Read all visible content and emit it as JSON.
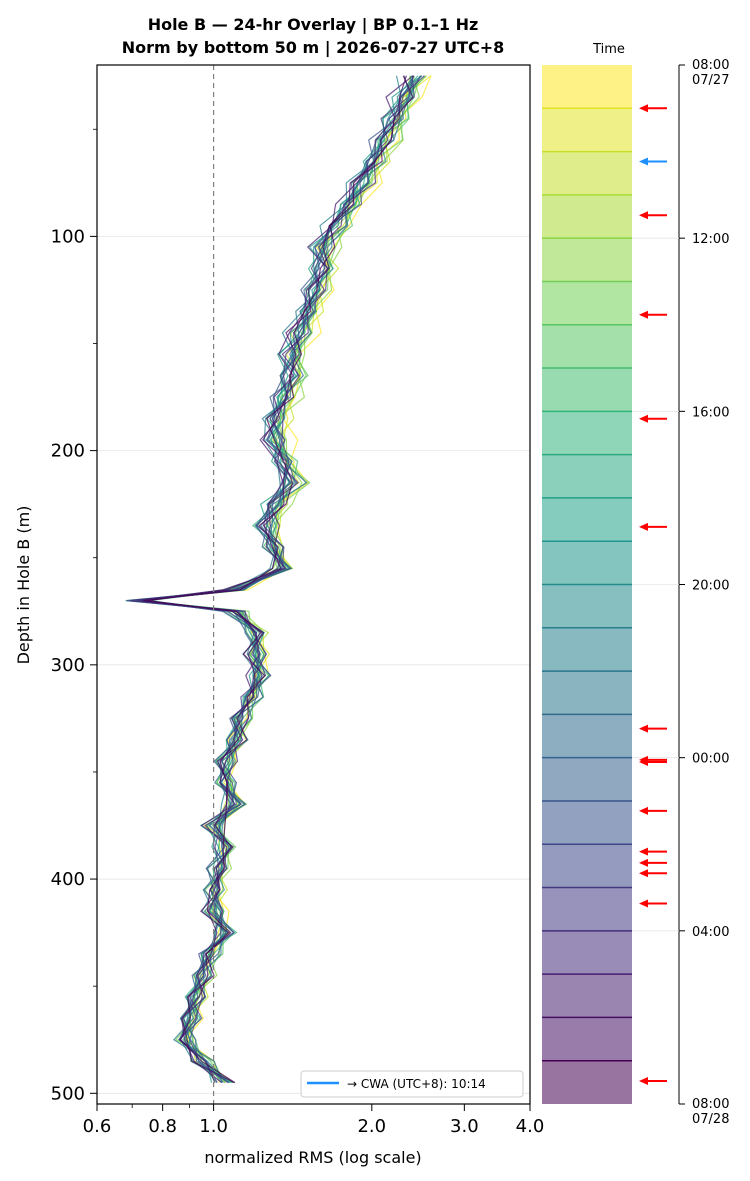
{
  "chart_data": {
    "type": "line",
    "title": "Hole B — 24-hr Overlay  |  BP 0.1–1 Hz",
    "subtitle": "Norm by bottom 50 m  |  2026-07-27 UTC+8",
    "xlabel": "normalized RMS  (log scale)",
    "ylabel": "Depth in Hole B (m)",
    "x_scale": "log",
    "xlim": [
      0.6,
      4.0
    ],
    "ylim": [
      505,
      20
    ],
    "x_ticks": [
      "0.6",
      "0.8",
      "1.0",
      "2.0",
      "3.0",
      "4.0"
    ],
    "y_ticks": [
      "100",
      "200",
      "300",
      "400",
      "500"
    ],
    "reference_line_x": 1.0,
    "legend": {
      "entry": "→ CWA (UTC+8): 10:14",
      "placement": "lower-right"
    },
    "colorbar": {
      "label": "Time",
      "top_label": "08:00\n07/27",
      "bottom_label": "08:00\n07/28",
      "tick_labels": [
        "12:00",
        "16:00",
        "20:00",
        "00:00",
        "04:00"
      ],
      "time_range_hours": [
        0,
        24
      ],
      "tick_hours": [
        4,
        8,
        12,
        16,
        20
      ],
      "bands": 24,
      "colormap": "viridis",
      "blue_arrow_hour": 2.23,
      "red_arrow_hours": [
        1.0,
        3.47,
        5.77,
        8.17,
        10.67,
        15.33,
        16.05,
        16.1,
        17.23,
        18.17,
        18.43,
        18.67,
        19.37,
        23.47
      ]
    },
    "depth_profile": {
      "depth_m": [
        25,
        35,
        45,
        55,
        65,
        75,
        85,
        95,
        105,
        115,
        125,
        135,
        145,
        155,
        165,
        175,
        185,
        195,
        205,
        215,
        225,
        235,
        245,
        255,
        265,
        270,
        275,
        285,
        295,
        305,
        315,
        325,
        335,
        345,
        355,
        365,
        375,
        385,
        395,
        405,
        415,
        425,
        435,
        445,
        455,
        465,
        475,
        485,
        495
      ],
      "rms_mean": [
        2.4,
        2.3,
        2.2,
        2.1,
        2.0,
        1.9,
        1.8,
        1.7,
        1.6,
        1.6,
        1.55,
        1.5,
        1.45,
        1.4,
        1.4,
        1.35,
        1.3,
        1.3,
        1.35,
        1.4,
        1.3,
        1.25,
        1.3,
        1.35,
        1.1,
        0.72,
        1.1,
        1.2,
        1.2,
        1.22,
        1.18,
        1.12,
        1.1,
        1.05,
        1.05,
        1.1,
        1.0,
        1.05,
        1.02,
        1.0,
        1.0,
        1.05,
        0.98,
        0.95,
        0.92,
        0.9,
        0.88,
        0.95,
        1.05
      ],
      "hour_offsets": [
        0.06,
        0.03,
        0.04,
        0.02,
        0.05,
        0.04,
        0.03,
        0.02,
        0.0,
        0.0,
        -0.01,
        0.0,
        0.01,
        -0.02,
        0.0,
        0.02,
        0.0,
        -0.01,
        0.01,
        0.0,
        0.02,
        -0.02,
        0.0,
        0.01
      ]
    }
  }
}
